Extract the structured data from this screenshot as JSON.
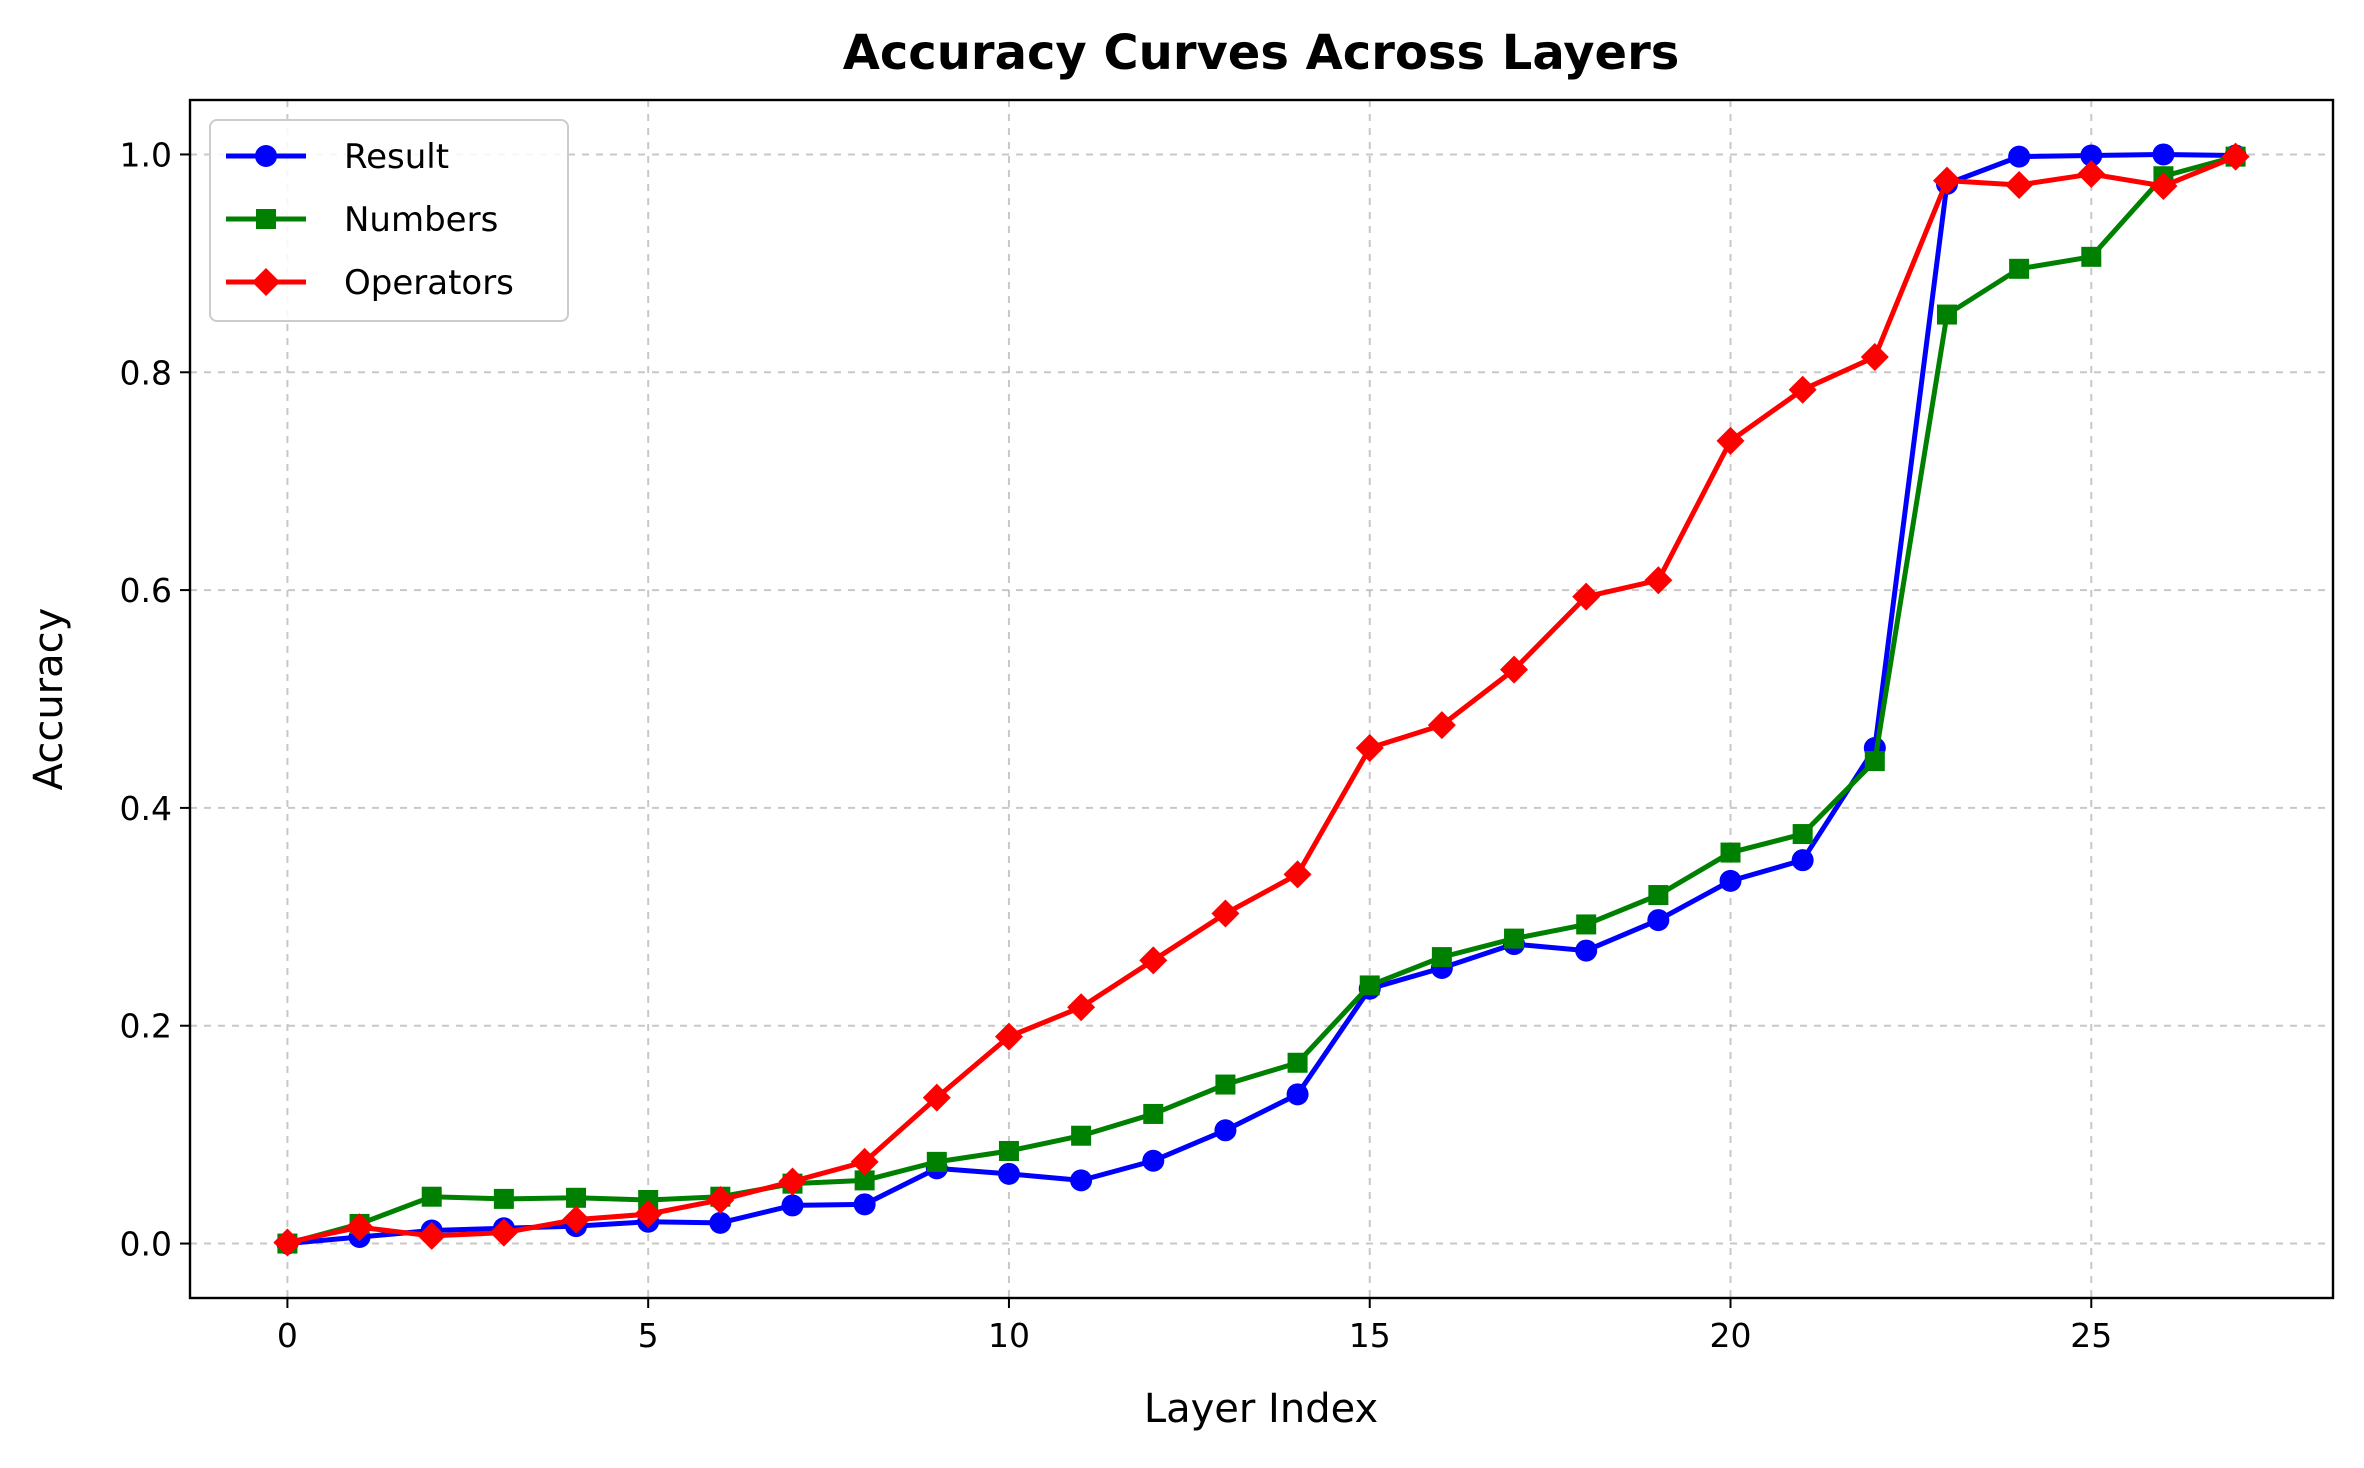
{
  "chart_data": {
    "type": "line",
    "title": "Accuracy Curves Across Layers",
    "xlabel": "Layer Index",
    "ylabel": "Accuracy",
    "xlim": [
      -1.35,
      28.35
    ],
    "ylim": [
      -0.05,
      1.05
    ],
    "xticks": [
      0,
      5,
      10,
      15,
      20,
      25
    ],
    "xtick_labels": [
      "0",
      "5",
      "10",
      "15",
      "20",
      "25"
    ],
    "yticks": [
      0.0,
      0.2,
      0.4,
      0.6,
      0.8,
      1.0
    ],
    "ytick_labels": [
      "0.0",
      "0.2",
      "0.4",
      "0.6",
      "0.8",
      "1.0"
    ],
    "grid": true,
    "legend_position": "top-left",
    "x": [
      0,
      1,
      2,
      3,
      4,
      5,
      6,
      7,
      8,
      9,
      10,
      11,
      12,
      13,
      14,
      15,
      16,
      17,
      18,
      19,
      20,
      21,
      22,
      23,
      24,
      25,
      26,
      27
    ],
    "series": [
      {
        "name": "Result",
        "color": "#0000ff",
        "marker": "circle",
        "values": [
          0.0,
          0.006,
          0.012,
          0.014,
          0.016,
          0.02,
          0.019,
          0.035,
          0.036,
          0.069,
          0.064,
          0.058,
          0.076,
          0.104,
          0.137,
          0.234,
          0.253,
          0.275,
          0.269,
          0.297,
          0.333,
          0.352,
          0.455,
          0.973,
          0.998,
          0.999,
          1.0,
          0.999
        ]
      },
      {
        "name": "Numbers",
        "color": "#008000",
        "marker": "square",
        "values": [
          0.0,
          0.018,
          0.043,
          0.041,
          0.042,
          0.04,
          0.043,
          0.055,
          0.058,
          0.075,
          0.085,
          0.099,
          0.119,
          0.146,
          0.166,
          0.237,
          0.263,
          0.28,
          0.293,
          0.32,
          0.359,
          0.376,
          0.443,
          0.853,
          0.895,
          0.906,
          0.98,
          0.998
        ]
      },
      {
        "name": "Operators",
        "color": "#ff0000",
        "marker": "diamond",
        "values": [
          0.001,
          0.015,
          0.007,
          0.01,
          0.022,
          0.027,
          0.04,
          0.057,
          0.075,
          0.134,
          0.19,
          0.217,
          0.26,
          0.303,
          0.339,
          0.455,
          0.476,
          0.527,
          0.594,
          0.609,
          0.737,
          0.784,
          0.814,
          0.976,
          0.972,
          0.982,
          0.971,
          0.998
        ]
      }
    ]
  }
}
